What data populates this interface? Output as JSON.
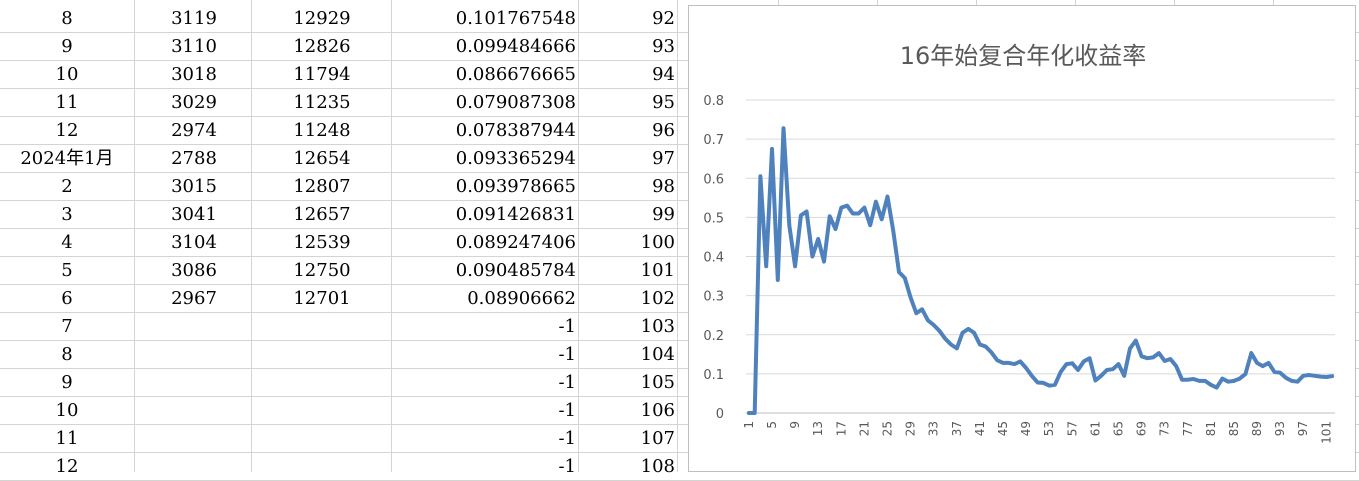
{
  "sheet": {
    "rows": [
      {
        "a": "8",
        "b": "3119",
        "c": "12929",
        "d": "0.101767548",
        "e": "92"
      },
      {
        "a": "9",
        "b": "3110",
        "c": "12826",
        "d": "0.099484666",
        "e": "93"
      },
      {
        "a": "10",
        "b": "3018",
        "c": "11794",
        "d": "0.086676665",
        "e": "94"
      },
      {
        "a": "11",
        "b": "3029",
        "c": "11235",
        "d": "0.079087308",
        "e": "95"
      },
      {
        "a": "12",
        "b": "2974",
        "c": "11248",
        "d": "0.078387944",
        "e": "96"
      },
      {
        "a": "2024年1月",
        "b": "2788",
        "c": "12654",
        "d": "0.093365294",
        "e": "97"
      },
      {
        "a": "2",
        "b": "3015",
        "c": "12807",
        "d": "0.093978665",
        "e": "98"
      },
      {
        "a": "3",
        "b": "3041",
        "c": "12657",
        "d": "0.091426831",
        "e": "99"
      },
      {
        "a": "4",
        "b": "3104",
        "c": "12539",
        "d": "0.089247406",
        "e": "100"
      },
      {
        "a": "5",
        "b": "3086",
        "c": "12750",
        "d": "0.090485784",
        "e": "101"
      },
      {
        "a": "6",
        "b": "2967",
        "c": "12701",
        "d": "0.08906662",
        "e": "102"
      },
      {
        "a": "7",
        "b": "",
        "c": "",
        "d": "-1",
        "e": "103"
      },
      {
        "a": "8",
        "b": "",
        "c": "",
        "d": "-1",
        "e": "104"
      },
      {
        "a": "9",
        "b": "",
        "c": "",
        "d": "-1",
        "e": "105"
      },
      {
        "a": "10",
        "b": "",
        "c": "",
        "d": "-1",
        "e": "106"
      },
      {
        "a": "11",
        "b": "",
        "c": "",
        "d": "-1",
        "e": "107"
      },
      {
        "a": "12",
        "b": "",
        "c": "",
        "d": "-1",
        "e": "108"
      }
    ]
  },
  "chart_data": {
    "type": "line",
    "title": "16年始复合年化收益率",
    "xlabel": "",
    "ylabel": "",
    "ylim": [
      0,
      0.8
    ],
    "yticks": [
      "0",
      "0.1",
      "0.2",
      "0.3",
      "0.4",
      "0.5",
      "0.6",
      "0.7",
      "0.8"
    ],
    "xticks": [
      "1",
      "5",
      "9",
      "13",
      "17",
      "21",
      "25",
      "29",
      "33",
      "37",
      "41",
      "45",
      "49",
      "53",
      "57",
      "61",
      "65",
      "69",
      "73",
      "77",
      "81",
      "85",
      "89",
      "93",
      "97",
      "101"
    ],
    "grid": true,
    "legend": "none",
    "line_color": "#4F81BD",
    "x_start": 1,
    "values": [
      0,
      0,
      0.605,
      0.375,
      0.675,
      0.34,
      0.728,
      0.48,
      0.375,
      0.505,
      0.515,
      0.4,
      0.445,
      0.387,
      0.503,
      0.47,
      0.525,
      0.53,
      0.51,
      0.51,
      0.525,
      0.48,
      0.54,
      0.495,
      0.553,
      0.465,
      0.36,
      0.345,
      0.295,
      0.255,
      0.265,
      0.237,
      0.225,
      0.21,
      0.19,
      0.175,
      0.165,
      0.205,
      0.215,
      0.205,
      0.175,
      0.17,
      0.155,
      0.135,
      0.128,
      0.128,
      0.125,
      0.132,
      0.115,
      0.095,
      0.078,
      0.077,
      0.07,
      0.072,
      0.105,
      0.125,
      0.127,
      0.11,
      0.132,
      0.14,
      0.083,
      0.095,
      0.11,
      0.112,
      0.125,
      0.095,
      0.165,
      0.185,
      0.145,
      0.14,
      0.142,
      0.153,
      0.133,
      0.138,
      0.12,
      0.085,
      0.085,
      0.087,
      0.082,
      0.082,
      0.072,
      0.065,
      0.088,
      0.08,
      0.082,
      0.088,
      0.1,
      0.153,
      0.128,
      0.12,
      0.128,
      0.105,
      0.103,
      0.09,
      0.082,
      0.08,
      0.095,
      0.097,
      0.095,
      0.093,
      0.092,
      0.094
    ]
  }
}
